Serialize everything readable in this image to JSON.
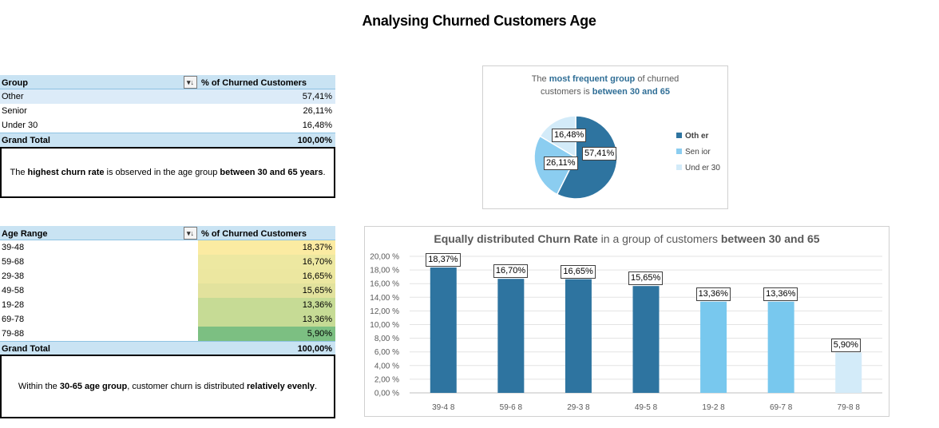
{
  "page_title": "Analysing Churned Customers Age",
  "group_table": {
    "col1": "Group",
    "col2": "% of Churned Customers",
    "rows": [
      {
        "label": "Other",
        "value": "57,41%"
      },
      {
        "label": "Senior",
        "value": "26,11%"
      },
      {
        "label": "Under 30",
        "value": "16,48%"
      }
    ],
    "total_label": "Grand Total",
    "total_value": "100,00%",
    "filter_icon": "filter-sort-icon"
  },
  "group_note": {
    "t1": "The ",
    "b1": "highest churn rate",
    "t2": " is observed in the age group ",
    "b2": "between 30 and 65 years",
    "t3": "."
  },
  "range_table": {
    "col1": "Age Range",
    "col2": "% of Churned Customers",
    "rows": [
      {
        "label": "39-48",
        "value": "18,37%",
        "color": "#fbeba2"
      },
      {
        "label": "59-68",
        "value": "16,70%",
        "color": "#ede8a1"
      },
      {
        "label": "29-38",
        "value": "16,65%",
        "color": "#ece7a0"
      },
      {
        "label": "49-58",
        "value": "15,65%",
        "color": "#e2e29d"
      },
      {
        "label": "19-28",
        "value": "13,36%",
        "color": "#c6db95"
      },
      {
        "label": "69-78",
        "value": "13,36%",
        "color": "#c6db95"
      },
      {
        "label": "79-88",
        "value": "5,90%",
        "color": "#7cbf82"
      }
    ],
    "total_label": "Grand Total",
    "total_value": "100,00%",
    "filter_icon": "filter-sort-icon"
  },
  "range_note": {
    "t1": "Within the ",
    "b1": "30-65 age group",
    "t2": ", customer churn is distributed ",
    "b2": "relatively evenly",
    "t3": "."
  },
  "pie_title": {
    "t1": "The ",
    "b1": "most frequent group",
    "t2": " of churned",
    "t3": "customers is ",
    "b2": "between 30 and 65"
  },
  "bar_title": {
    "b1": "Equally distributed Churn Rate",
    "t1": " in a group of customers ",
    "b2": "between 30 and 65"
  },
  "chart_data": [
    {
      "type": "pie",
      "categories": [
        "Oth er",
        "Sen ior",
        "Und er 30"
      ],
      "values": [
        57.41,
        26.11,
        16.48
      ],
      "labels": [
        "57,41%",
        "26,11%",
        "16,48%"
      ],
      "colors": [
        "#2e74a0",
        "#8bcdf0",
        "#d3ebf9"
      ],
      "legend": "right"
    },
    {
      "type": "bar",
      "categories": [
        "39-4 8",
        "59-6 8",
        "29-3 8",
        "49-5 8",
        "19-2 8",
        "69-7 8",
        "79-8 8"
      ],
      "values": [
        18.37,
        16.7,
        16.65,
        15.65,
        13.36,
        13.36,
        5.9
      ],
      "labels": [
        "18,37%",
        "16,70%",
        "16,65%",
        "15,65%",
        "13,36%",
        "13,36%",
        "5,90%"
      ],
      "colors": [
        "#2e74a0",
        "#2e74a0",
        "#2e74a0",
        "#2e74a0",
        "#78c8ee",
        "#78c8ee",
        "#d3ebf9"
      ],
      "ylim": [
        0,
        20
      ],
      "yticks": [
        "0,00 %",
        "2,00 %",
        "4,00 %",
        "6,00 %",
        "8,00 %",
        "10,00 %",
        "12,00 %",
        "14,00 %",
        "16,00 %",
        "18,00 %",
        "20,00 %"
      ],
      "grid": true
    }
  ]
}
